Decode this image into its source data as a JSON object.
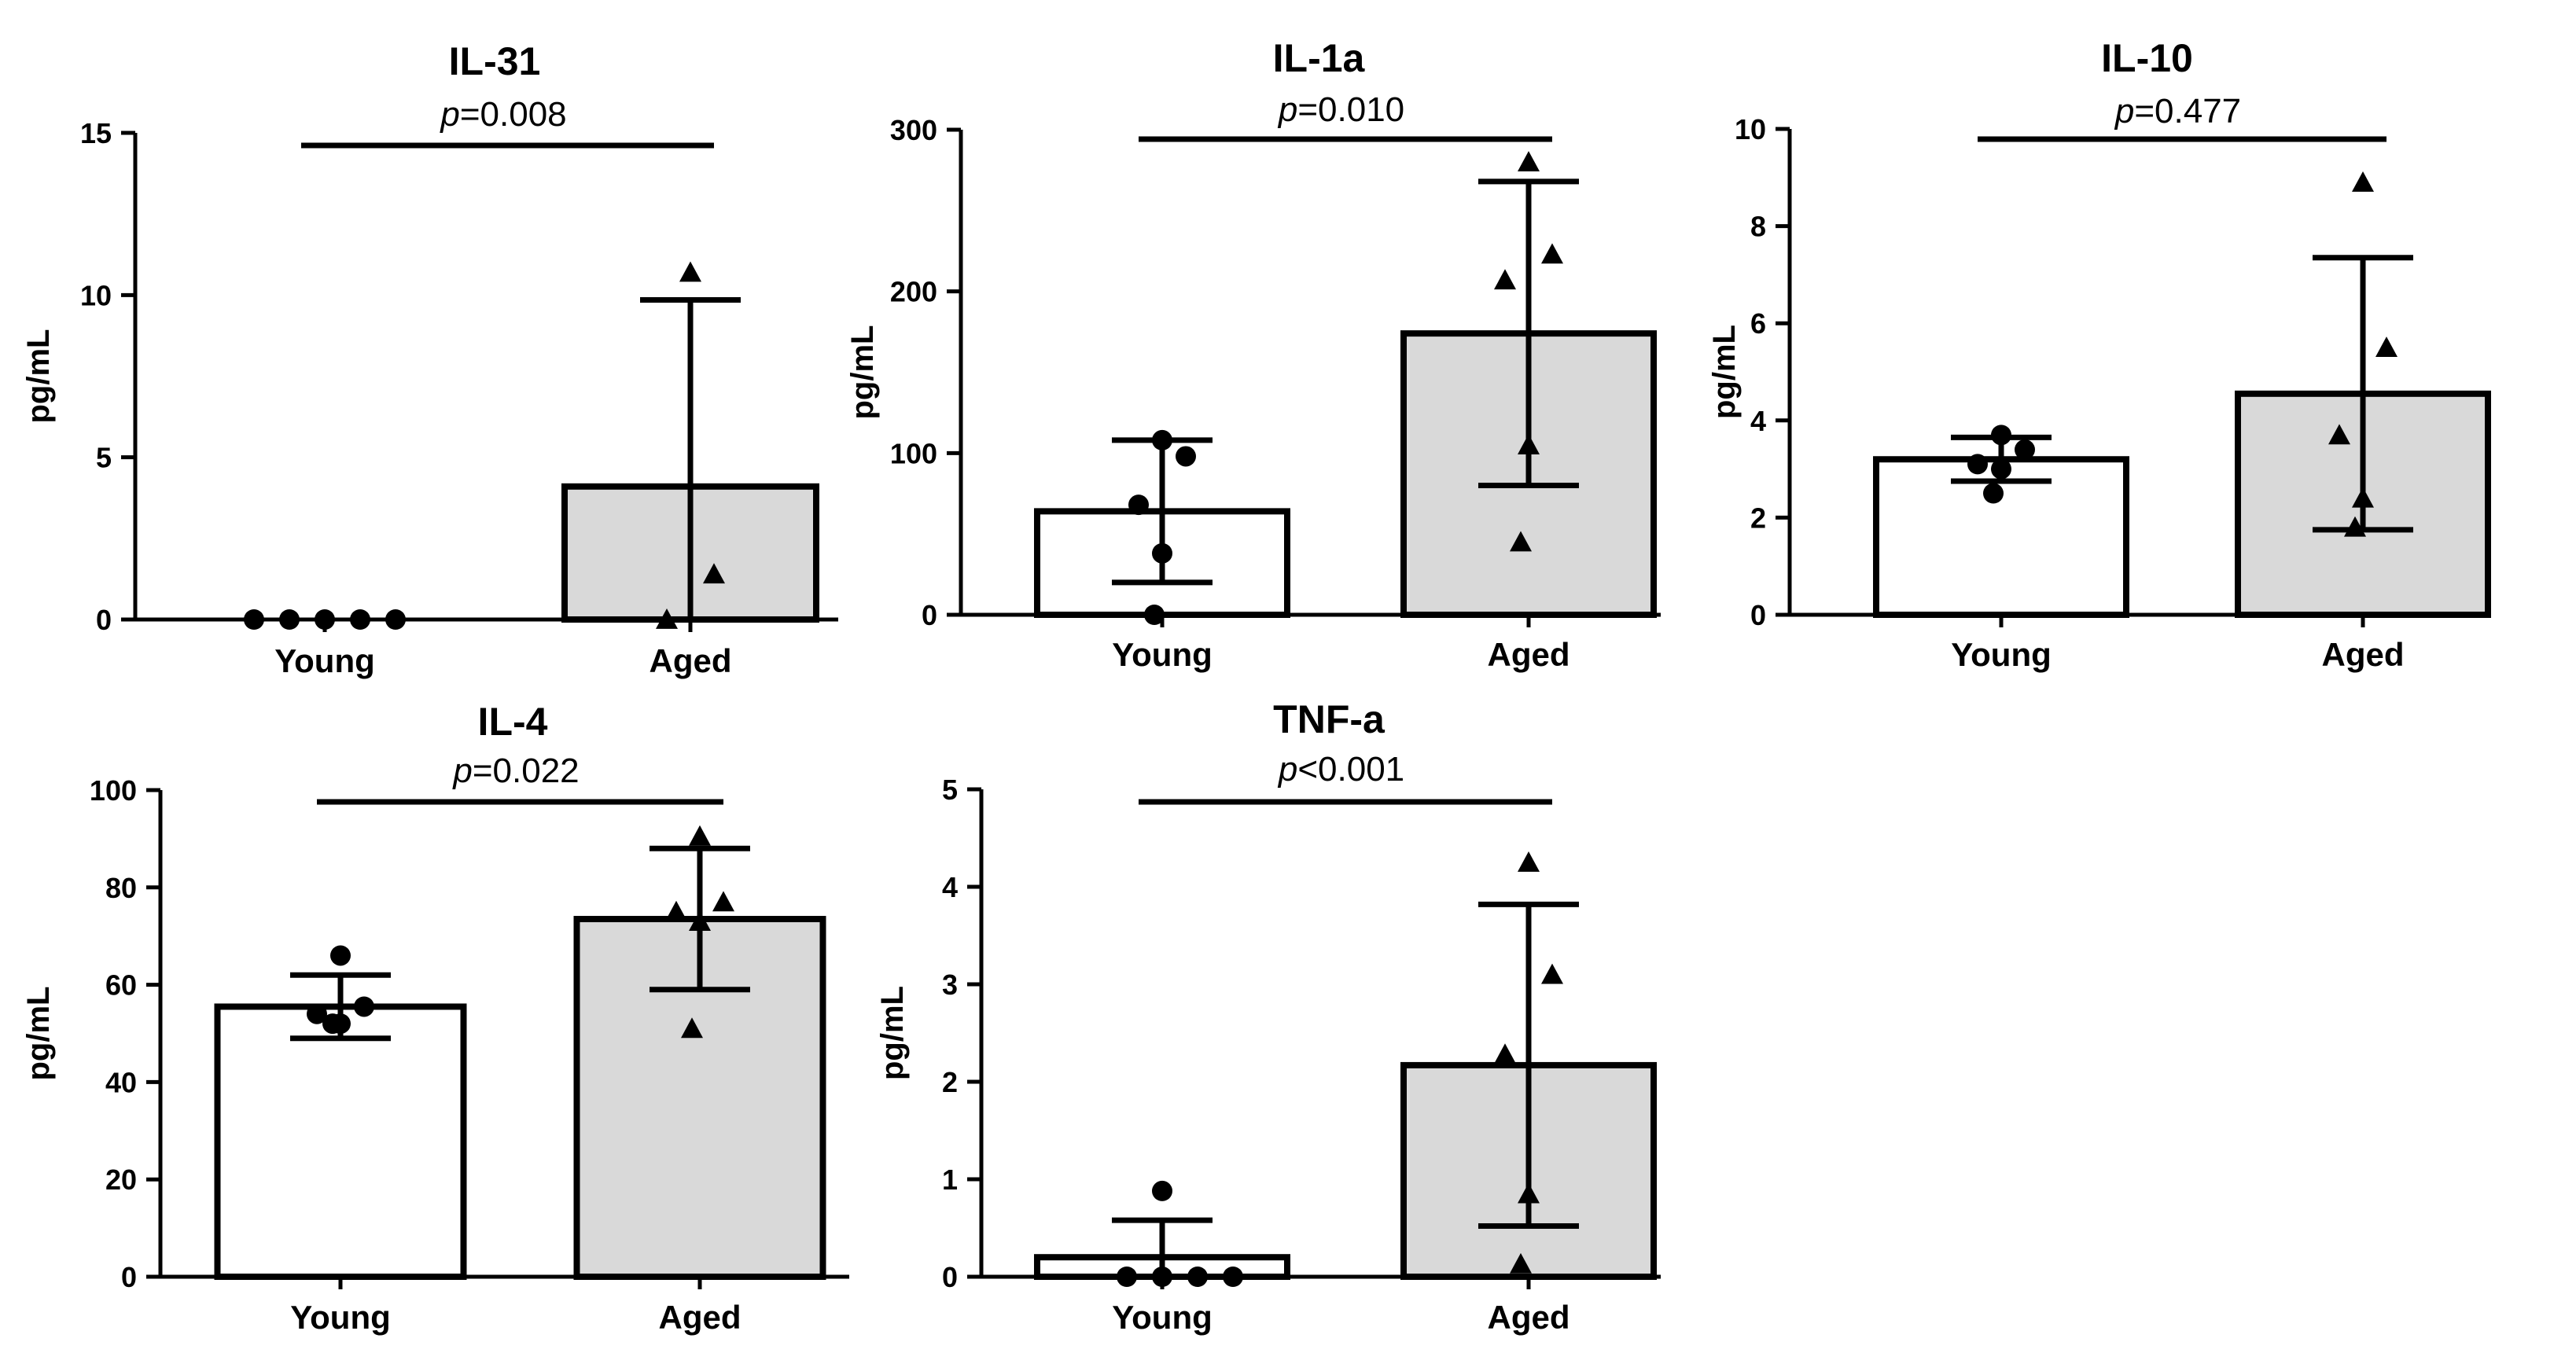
{
  "chart_data": [
    {
      "type": "bar",
      "title": "IL-31",
      "ylabel": "pg/mL",
      "xlabel": "",
      "categories": [
        "Young",
        "Aged"
      ],
      "means": [
        0,
        4.1
      ],
      "sd": [
        0,
        5.75
      ],
      "points": [
        [
          0,
          0,
          0,
          0,
          0
        ],
        [
          10.7,
          1.4,
          0
        ]
      ],
      "ylim": [
        0,
        15
      ],
      "yticks": [
        0,
        5,
        10,
        15
      ],
      "p_label": "p",
      "p_value": "=0.008"
    },
    {
      "type": "bar",
      "title": "IL-1a",
      "ylabel": "pg/mL",
      "xlabel": "",
      "categories": [
        "Young",
        "Aged"
      ],
      "means": [
        64,
        174
      ],
      "sd": [
        44,
        94
      ],
      "points": [
        [
          108,
          98,
          68,
          38,
          0
        ],
        [
          280,
          223,
          207,
          105,
          45
        ]
      ],
      "ylim": [
        0,
        300
      ],
      "yticks": [
        0,
        100,
        200,
        300
      ],
      "p_label": "p",
      "p_value": "=0.010"
    },
    {
      "type": "bar",
      "title": "IL-10",
      "ylabel": "pg/mL",
      "xlabel": "",
      "categories": [
        "Young",
        "Aged"
      ],
      "means": [
        3.2,
        4.55
      ],
      "sd": [
        0.45,
        2.8
      ],
      "points": [
        [
          3.7,
          3.4,
          3.1,
          3.0,
          2.5
        ],
        [
          8.9,
          5.5,
          3.7,
          2.4,
          1.8
        ]
      ],
      "ylim": [
        0,
        10
      ],
      "yticks": [
        0,
        2,
        4,
        6,
        8,
        10
      ],
      "p_label": "p",
      "p_value": "=0.477"
    },
    {
      "type": "bar",
      "title": "IL-4",
      "ylabel": "pg/mL",
      "xlabel": "",
      "categories": [
        "Young",
        "Aged"
      ],
      "means": [
        55.5,
        73.5
      ],
      "sd": [
        6.5,
        14.5
      ],
      "points": [
        [
          66,
          55.5,
          54,
          52,
          52
        ],
        [
          90.5,
          77,
          75,
          73,
          51
        ]
      ],
      "ylim": [
        0,
        100
      ],
      "yticks": [
        0,
        20,
        40,
        60,
        80,
        100
      ],
      "p_label": "p",
      "p_value": "=0.022"
    },
    {
      "type": "bar",
      "title": "TNF-a",
      "ylabel": "pg/mL",
      "xlabel": "",
      "categories": [
        "Young",
        "Aged"
      ],
      "means": [
        0.2,
        2.17
      ],
      "sd": [
        0.38,
        1.65
      ],
      "points": [
        [
          0.88,
          0,
          0,
          0,
          0
        ],
        [
          4.25,
          3.1,
          2.28,
          0.85,
          0.13
        ]
      ],
      "ylim": [
        0,
        5
      ],
      "yticks": [
        0,
        1,
        2,
        3,
        4,
        5
      ],
      "p_label": "p",
      "p_value": "<0.001"
    }
  ],
  "colors": {
    "young_fill": "#ffffff",
    "aged_fill": "#d9d9d9",
    "stroke": "#000000"
  }
}
